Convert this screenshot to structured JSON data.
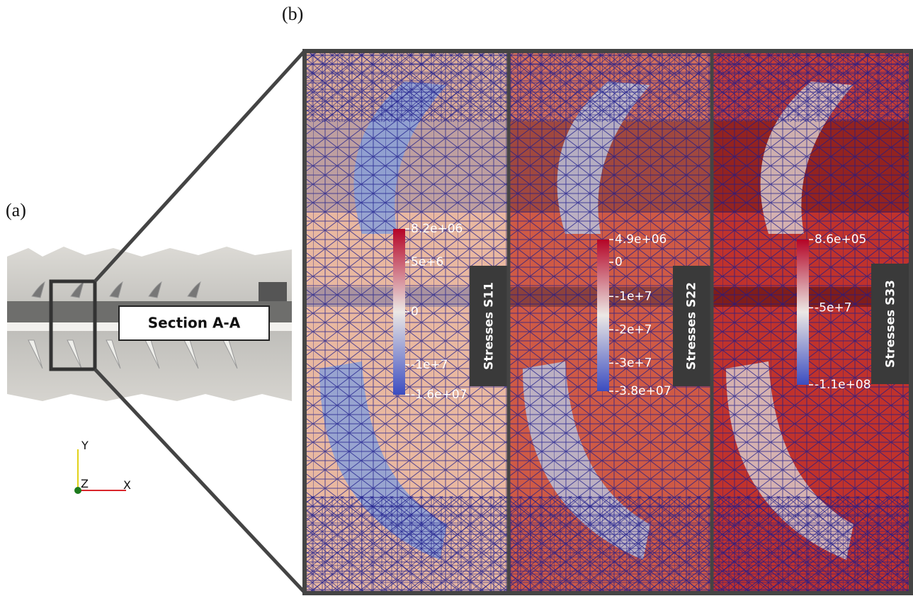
{
  "labels": {
    "a": "(a)",
    "b": "(b)"
  },
  "section_label": "Section A-A",
  "axes": {
    "y": "Y",
    "z": "Z",
    "x": "X"
  },
  "panels": [
    {
      "title": "Stresses S11",
      "ticks": [
        "8.2e+06",
        "5e+6",
        "0",
        "-1e+7",
        "-1.6e+07"
      ]
    },
    {
      "title": "Stresses S22",
      "ticks": [
        "4.9e+06",
        "0",
        "-1e+7",
        "-2e+7",
        "-3e+7",
        "-3.8e+07"
      ]
    },
    {
      "title": "Stresses S33",
      "ticks": [
        "8.6e+05",
        "-5e+7",
        "-1.1e+08"
      ]
    }
  ]
}
